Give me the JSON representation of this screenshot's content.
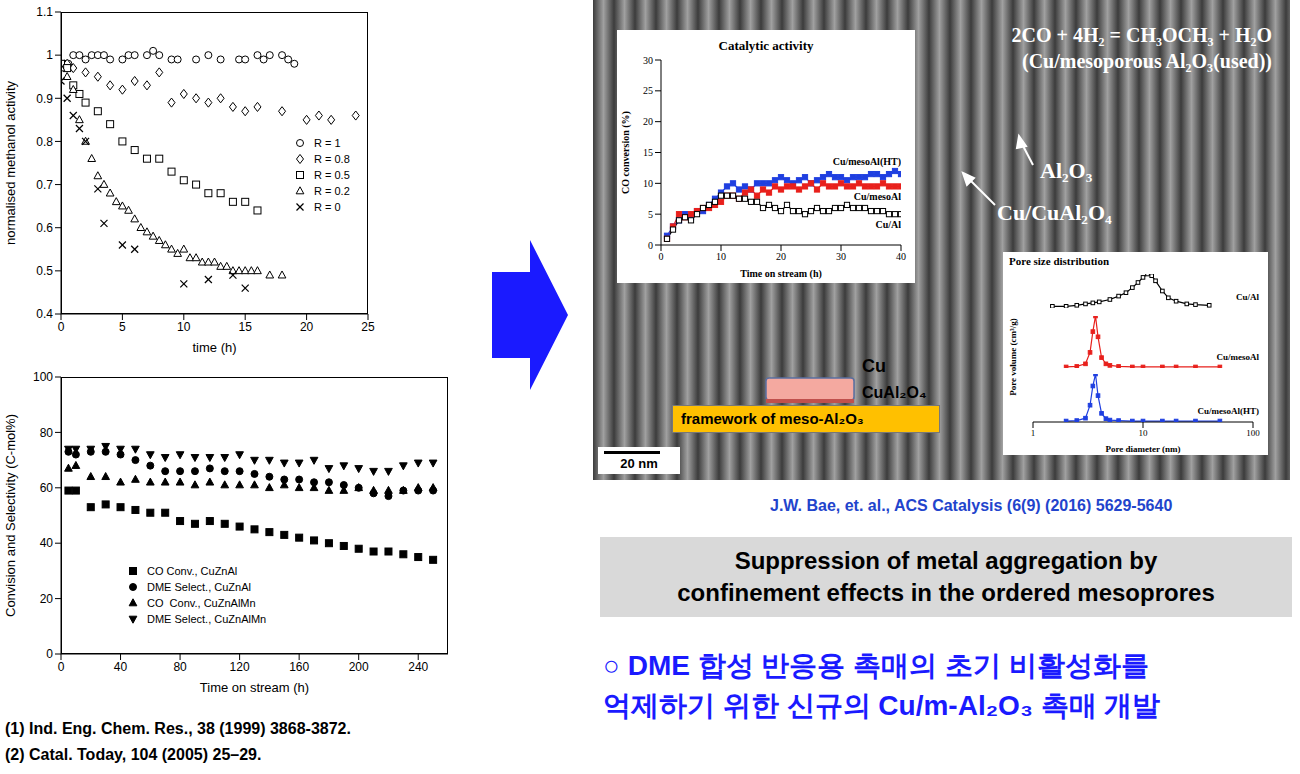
{
  "chart_data": [
    {
      "type": "scatter",
      "x_label": "time (h)",
      "y_label": "normalised methanol activity",
      "xlim": [
        0,
        25
      ],
      "xticks": [
        0,
        5,
        10,
        15,
        20,
        25
      ],
      "ylim": [
        0.4,
        1.1
      ],
      "yticks": [
        0.4,
        0.5,
        0.6,
        0.7,
        0.8,
        0.9,
        1,
        1.1
      ],
      "legend": "right",
      "series": [
        {
          "name": "R = 1",
          "color": "#000000",
          "marker": "open_circle",
          "x": [
            0,
            0.3,
            0.6,
            1,
            1.5,
            2,
            2.5,
            3,
            3.5,
            4,
            5,
            5.5,
            6,
            7,
            7.5,
            8,
            9,
            9.5,
            11,
            12,
            13,
            14.5,
            15,
            16,
            16.5,
            17,
            18,
            18.5,
            19
          ],
          "values": [
            0.98,
            0.98,
            0.98,
            1.0,
            1.0,
            0.99,
            1.0,
            1.0,
            1.0,
            0.99,
            0.99,
            1.0,
            1.0,
            1.0,
            1.01,
            1.0,
            0.99,
            0.99,
            0.99,
            1.0,
            0.99,
            0.99,
            0.99,
            1.0,
            0.99,
            1.0,
            1.0,
            0.99,
            0.98
          ]
        },
        {
          "name": "R = 0.8",
          "color": "#000000",
          "marker": "open_diamond",
          "x": [
            0,
            0.5,
            1,
            2,
            3,
            4,
            5,
            6,
            7,
            8,
            9,
            10,
            11,
            12,
            13,
            14,
            15,
            16,
            18,
            20,
            21,
            22,
            24
          ],
          "values": [
            0.98,
            0.98,
            0.97,
            0.96,
            0.95,
            0.93,
            0.92,
            0.94,
            0.93,
            0.96,
            0.89,
            0.91,
            0.9,
            0.89,
            0.9,
            0.88,
            0.87,
            0.88,
            0.87,
            0.85,
            0.86,
            0.85,
            0.86
          ]
        },
        {
          "name": "R = 0.5",
          "color": "#000000",
          "marker": "open_square",
          "x": [
            0,
            0.5,
            1,
            1.5,
            2,
            3,
            4,
            5,
            6,
            7,
            8,
            9,
            10,
            11,
            12,
            13,
            14,
            15,
            16
          ],
          "values": [
            0.98,
            0.97,
            0.93,
            0.91,
            0.89,
            0.87,
            0.84,
            0.8,
            0.78,
            0.76,
            0.76,
            0.73,
            0.71,
            0.7,
            0.68,
            0.68,
            0.66,
            0.66,
            0.64
          ]
        },
        {
          "name": "R = 0.2",
          "color": "#000000",
          "marker": "open_triangle",
          "x": [
            0,
            0.5,
            1,
            1.5,
            2,
            2.5,
            3,
            3.5,
            4,
            4.5,
            5,
            5.5,
            6,
            6.5,
            7,
            7.5,
            8,
            8.5,
            9,
            9.5,
            10,
            10.5,
            11,
            11.5,
            12,
            12.5,
            13,
            13.5,
            14,
            14.5,
            15,
            15.5,
            16,
            17,
            18
          ],
          "values": [
            0.97,
            0.95,
            0.92,
            0.85,
            0.8,
            0.76,
            0.72,
            0.7,
            0.68,
            0.66,
            0.65,
            0.64,
            0.62,
            0.6,
            0.59,
            0.58,
            0.57,
            0.56,
            0.55,
            0.54,
            0.55,
            0.53,
            0.53,
            0.52,
            0.52,
            0.52,
            0.51,
            0.51,
            0.5,
            0.5,
            0.5,
            0.5,
            0.5,
            0.49,
            0.49
          ]
        },
        {
          "name": "R = 0",
          "color": "#000000",
          "marker": "x",
          "x": [
            0,
            0.5,
            1,
            1.5,
            2,
            3,
            3.5,
            5,
            6,
            10,
            12,
            14,
            15
          ],
          "values": [
            0.94,
            0.9,
            0.86,
            0.83,
            0.8,
            0.69,
            0.61,
            0.56,
            0.55,
            0.47,
            0.48,
            0.49,
            0.46
          ]
        }
      ]
    },
    {
      "type": "scatter",
      "x_label": "Time on stream (h)",
      "y_label": "Convision and Selectivity (C-mol%)",
      "xlim": [
        0,
        260
      ],
      "xticks": [
        0,
        40,
        80,
        120,
        160,
        200,
        240
      ],
      "ylim": [
        0,
        100
      ],
      "yticks": [
        0,
        20,
        40,
        60,
        80,
        100
      ],
      "legend": "lower left",
      "x": [
        5,
        10,
        20,
        30,
        40,
        50,
        60,
        70,
        80,
        90,
        100,
        110,
        120,
        130,
        140,
        150,
        160,
        170,
        180,
        190,
        200,
        210,
        220,
        230,
        240,
        250
      ],
      "series": [
        {
          "name": "CO Conv., CuZnAl",
          "color": "#000000",
          "marker": "square",
          "values": [
            59,
            59,
            53,
            54,
            53,
            52,
            51,
            51,
            48,
            47,
            48,
            47,
            46,
            45,
            44,
            43,
            42,
            41,
            40,
            39,
            38,
            37,
            37,
            36,
            35,
            34
          ]
        },
        {
          "name": "DME Select., CuZnAl",
          "color": "#000000",
          "marker": "circle",
          "values": [
            73,
            72,
            73,
            73,
            72,
            70,
            68,
            66,
            66,
            66,
            67,
            66,
            66,
            65,
            64,
            63,
            63,
            62,
            62,
            61,
            60,
            58,
            57,
            59,
            59,
            59
          ]
        },
        {
          "name": "CO  Conv., CuZnAlMn",
          "color": "#000000",
          "marker": "triangle",
          "values": [
            67,
            68,
            64,
            64,
            62,
            63,
            62,
            62,
            62,
            61,
            62,
            61,
            61,
            61,
            60,
            61,
            60,
            60,
            59,
            59,
            60,
            59,
            59,
            59,
            60,
            60
          ]
        },
        {
          "name": "DME Select., CuZnAlMn",
          "color": "#000000",
          "marker": "triangle_down",
          "values": [
            74,
            74,
            74,
            75,
            74,
            74,
            72,
            71,
            72,
            71,
            71,
            71,
            72,
            70,
            70,
            69,
            69,
            70,
            67,
            68,
            67,
            66,
            66,
            68,
            69,
            69
          ]
        }
      ]
    },
    {
      "type": "line",
      "title": "Catalytic activity",
      "x_label": "Time on stream (h)",
      "y_label": "CO conversion (%)",
      "xlim": [
        0,
        40
      ],
      "xticks": [
        0,
        10,
        20,
        30,
        40
      ],
      "ylim": [
        0,
        30
      ],
      "yticks": [
        0,
        5,
        10,
        15,
        20,
        25,
        30
      ],
      "x": [
        1,
        2,
        3,
        4,
        5,
        6,
        7,
        8,
        9,
        10,
        11,
        12,
        13,
        14,
        15,
        16,
        17,
        18,
        19,
        20,
        21,
        22,
        23,
        24,
        25,
        26,
        27,
        28,
        29,
        30,
        31,
        32,
        33,
        34,
        35,
        36,
        37,
        38,
        39,
        40
      ],
      "series": [
        {
          "name": "Cu/mesoAl(HT)",
          "color": "#1f3fe0",
          "marker": "square",
          "line_style": "solid",
          "values": [
            1.5,
            3,
            4,
            5,
            4.5,
            5.5,
            5.5,
            6.5,
            7.5,
            8.5,
            9.5,
            10,
            9,
            9.5,
            9,
            10,
            10,
            10,
            10.5,
            11,
            10.5,
            10,
            10.5,
            11,
            10,
            10.5,
            11,
            11.5,
            11,
            11,
            10.5,
            11,
            11,
            11,
            11.5,
            11.5,
            11,
            11.5,
            12,
            11.5
          ]
        },
        {
          "name": "Cu/mesoAl",
          "color": "#e8201c",
          "marker": "square",
          "line_style": "solid",
          "values": [
            1,
            3,
            5,
            4.5,
            5,
            5.5,
            6,
            6,
            6.5,
            7,
            8,
            8,
            7.5,
            8.5,
            9,
            8,
            9,
            8.5,
            9.5,
            9,
            9.5,
            9.5,
            9,
            9.5,
            10,
            9,
            10,
            9.5,
            9.5,
            10,
            9.5,
            9.5,
            10,
            9.5,
            9.5,
            9.5,
            10,
            9.5,
            9.5,
            9.5
          ]
        },
        {
          "name": "Cu/Al",
          "color": "#ffffff",
          "marker": "square",
          "line_style": "solid",
          "values": [
            1,
            2.5,
            4,
            4.5,
            4,
            5,
            6,
            6.5,
            7,
            8,
            8,
            8,
            7.5,
            7.5,
            7,
            7,
            6,
            6.5,
            6,
            5.5,
            6.5,
            5.5,
            5.5,
            5,
            5.5,
            6,
            5.5,
            5.5,
            6,
            6,
            6.5,
            6,
            6,
            6,
            5.5,
            5.5,
            5.5,
            5,
            5,
            5
          ]
        }
      ]
    },
    {
      "type": "line",
      "title": "Pore size distribution",
      "x_label": "Pore diameter (nm)",
      "y_label": "Pore volume (cm³/g)",
      "log": "x",
      "xlim": [
        1,
        100
      ],
      "xticks": [
        1,
        10,
        100
      ],
      "ylim": [
        0,
        1
      ],
      "tick_labels": "x",
      "series": [
        {
          "name": "Cu/Al",
          "color": "#ffffff",
          "marker": "square",
          "line_style": "solid",
          "x": [
            1.5,
            2,
            2.5,
            3,
            3.5,
            4,
            5,
            6,
            7,
            8,
            9,
            10,
            11,
            12,
            13,
            15,
            17,
            20,
            25,
            30,
            40
          ],
          "values": [
            0.05,
            0.05,
            0.08,
            0.12,
            0.15,
            0.18,
            0.25,
            0.35,
            0.45,
            0.6,
            0.75,
            0.9,
            1.0,
            0.95,
            0.8,
            0.5,
            0.3,
            0.2,
            0.12,
            0.1,
            0.08
          ]
        },
        {
          "name": "Cu/mesoAl",
          "color": "#e8201c",
          "marker": "square",
          "line_style": "solid",
          "x": [
            2,
            2.5,
            3,
            3.3,
            3.5,
            3.7,
            3.9,
            4.2,
            4.6,
            5,
            6,
            8,
            10,
            15,
            20,
            30,
            50
          ],
          "values": [
            0.02,
            0.03,
            0.08,
            0.3,
            0.7,
            1.0,
            0.6,
            0.2,
            0.08,
            0.05,
            0.03,
            0.02,
            0.02,
            0.02,
            0.02,
            0.02,
            0.02
          ]
        },
        {
          "name": "Cu/mesoAl(HT)",
          "color": "#1f3fe0",
          "marker": "square",
          "line_style": "solid",
          "x": [
            2,
            2.5,
            3,
            3.3,
            3.5,
            3.7,
            3.9,
            4.2,
            4.6,
            5,
            6,
            8,
            10,
            15,
            20,
            30,
            50
          ],
          "values": [
            0.02,
            0.03,
            0.08,
            0.35,
            0.75,
            1.0,
            0.55,
            0.18,
            0.07,
            0.04,
            0.03,
            0.02,
            0.02,
            0.02,
            0.02,
            0.02,
            0.02
          ]
        }
      ]
    }
  ],
  "texts": {
    "equation": "2CO + 4H₂ = CH₃OCH₃ + H₂O",
    "sample": "(Cu/mesoporous Al₂O₃(used))",
    "label_al2o3": "Al₂O₃",
    "label_cu_cual2o4": "Cu/CuAl₂O₄",
    "scheme_cu": "Cu",
    "scheme_cual2o4": "CuAl₂O₄",
    "scheme_framework": "framework of meso-Al₂O₃",
    "scale_bar": "20 nm",
    "citation": "J.W. Bae, et. al., ACS Catalysis (6(9) (2016) 5629-5640",
    "caption": [
      "Suppression of metal aggregation by",
      "confinement effects in the ordered mesoprores"
    ],
    "korean": [
      "○ DME 합성 반응용 촉매의 초기 비활성화를",
      "억제하기 위한 신규의 Cu/m-Al₂O₃ 촉매 개발"
    ],
    "references": [
      "(1) Ind. Eng. Chem. Res., 38 (1999) 3868-3872.",
      "(2) Catal. Today, 104 (2005) 25–29."
    ]
  }
}
